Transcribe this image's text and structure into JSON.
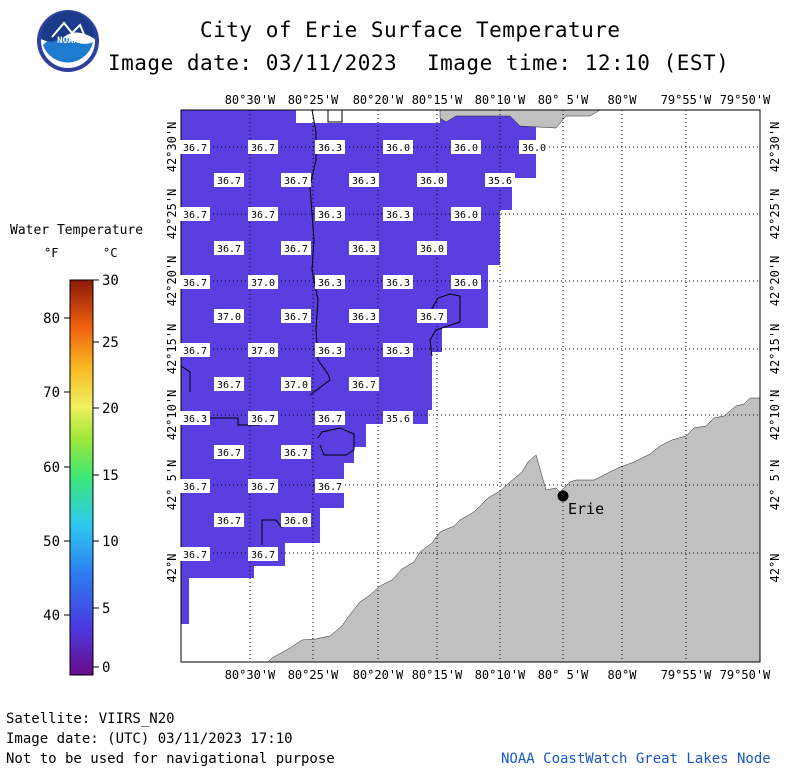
{
  "header": {
    "title": "City of Erie Surface Temperature",
    "image_date": "Image date: 03/11/2023",
    "image_time": "Image time: 12:10 (EST)"
  },
  "legend": {
    "title": "Water Temperature",
    "unit_f": "°F",
    "unit_c": "°C",
    "f_ticks": [
      "80",
      "70",
      "60",
      "50",
      "40"
    ],
    "c_ticks": [
      "30",
      "25",
      "20",
      "15",
      "10",
      "5",
      "0"
    ]
  },
  "axes": {
    "lon_labels": [
      "80°30'W",
      "80°25'W",
      "80°20'W",
      "80°15'W",
      "80°10'W",
      "80° 5'W",
      "80°W",
      "79°55'W",
      "79°50'W"
    ],
    "lat_labels": [
      "42°30'N",
      "42°25'N",
      "42°20'N",
      "42°15'N",
      "42°10'N",
      "42° 5'N",
      "42°N"
    ]
  },
  "city": {
    "name": "Erie"
  },
  "temps": [
    [
      "36.7",
      "36.7",
      "36.3",
      "36.0",
      "36.0",
      "36.0"
    ],
    [
      "36.7",
      "36.7",
      "36.3",
      "36.0",
      "35.6"
    ],
    [
      "36.7",
      "36.7",
      "36.3",
      "36.3",
      "36.0"
    ],
    [
      "36.7",
      "36.7",
      "36.3",
      "36.0"
    ],
    [
      "36.7",
      "37.0",
      "36.3",
      "36.3",
      "36.0"
    ],
    [
      "37.0",
      "36.7",
      "36.3",
      "36.7"
    ],
    [
      "36.7",
      "37.0",
      "36.3",
      "36.3"
    ],
    [
      "36.7",
      "37.0",
      "36.7"
    ],
    [
      "36.3",
      "36.7",
      "36.7",
      "35.6"
    ],
    [
      "36.7",
      "36.7"
    ],
    [
      "36.7",
      "36.7",
      "36.7"
    ],
    [
      "36.7",
      "36.0"
    ],
    [
      "36.7",
      "36.7"
    ]
  ],
  "colors": {
    "water": "#5a3ee0",
    "land": "#c0c0c0"
  },
  "footer": {
    "satellite": "Satellite: VIIRS_N20",
    "utc_date": "Image date: (UTC) 03/11/2023  17:10",
    "disclaimer": "Not to be used for navigational purpose",
    "credit": "NOAA CoastWatch Great Lakes Node"
  }
}
